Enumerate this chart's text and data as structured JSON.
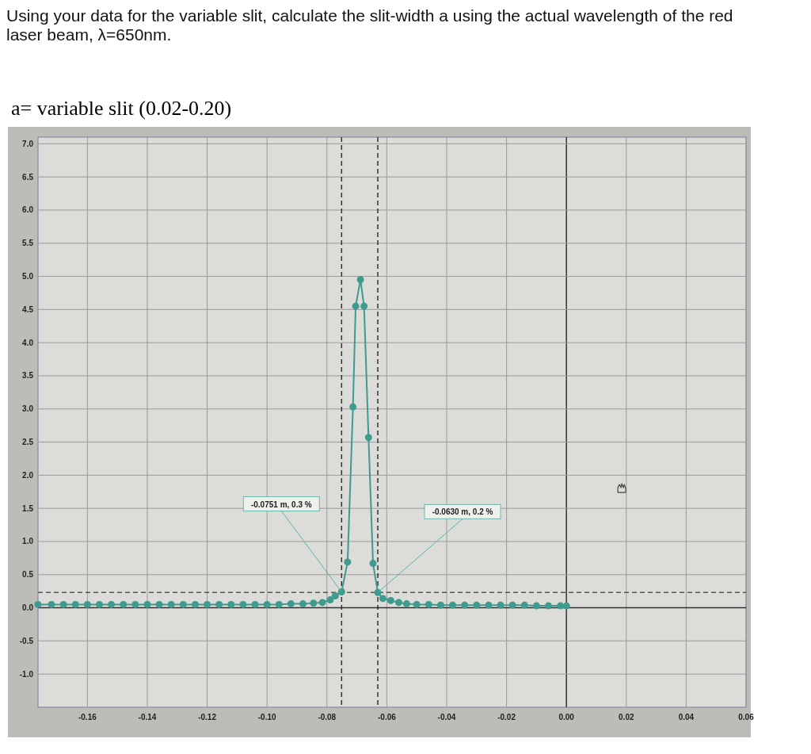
{
  "chart_data": {
    "type": "line",
    "title": "Using your data for the variable slit, calculate the slit-width a using the actual wavelength of the red laser beam, λ=650nm.",
    "subtitle": "a= variable slit (0.02-0.20)",
    "series": [
      {
        "color": "#3f9a8f",
        "x": [
          -0.1765,
          -0.172,
          -0.168,
          -0.164,
          -0.16,
          -0.156,
          -0.152,
          -0.148,
          -0.144,
          -0.14,
          -0.136,
          -0.132,
          -0.128,
          -0.124,
          -0.12,
          -0.116,
          -0.112,
          -0.108,
          -0.104,
          -0.1,
          -0.096,
          -0.092,
          -0.088,
          -0.0845,
          -0.0815,
          -0.0789,
          -0.0772,
          -0.0751,
          -0.0731,
          -0.0713,
          -0.0704,
          -0.0688,
          -0.0676,
          -0.0661,
          -0.0646,
          -0.063,
          -0.0613,
          -0.0587,
          -0.056,
          -0.0534,
          -0.05,
          -0.046,
          -0.042,
          -0.038,
          -0.034,
          -0.03,
          -0.026,
          -0.022,
          -0.018,
          -0.014,
          -0.01,
          -0.006,
          -0.002,
          0.0
        ],
        "values": [
          0.05,
          0.05,
          0.05,
          0.05,
          0.05,
          0.05,
          0.05,
          0.05,
          0.05,
          0.05,
          0.05,
          0.05,
          0.05,
          0.05,
          0.05,
          0.05,
          0.05,
          0.05,
          0.05,
          0.05,
          0.05,
          0.06,
          0.06,
          0.07,
          0.08,
          0.12,
          0.18,
          0.24,
          0.69,
          3.03,
          4.55,
          4.95,
          4.55,
          2.57,
          0.67,
          0.23,
          0.14,
          0.11,
          0.08,
          0.06,
          0.05,
          0.05,
          0.04,
          0.04,
          0.04,
          0.04,
          0.04,
          0.04,
          0.04,
          0.04,
          0.03,
          0.03,
          0.03,
          0.03
        ]
      }
    ],
    "marker": "circle",
    "grid": true,
    "xlim": [
      -0.1765,
      0.06
    ],
    "ylim": [
      -1.5,
      7.1
    ],
    "xticks": [
      {
        "value": -0.16,
        "label": "-0.16"
      },
      {
        "value": -0.14,
        "label": "-0.14"
      },
      {
        "value": -0.12,
        "label": "-0.12"
      },
      {
        "value": -0.1,
        "label": "-0.10"
      },
      {
        "value": -0.08,
        "label": "-0.08"
      },
      {
        "value": -0.06,
        "label": "-0.06"
      },
      {
        "value": -0.04,
        "label": "-0.04"
      },
      {
        "value": -0.02,
        "label": "-0.02"
      },
      {
        "value": 0,
        "label": "0.00"
      },
      {
        "value": 0.02,
        "label": "0.02"
      },
      {
        "value": 0.04,
        "label": "0.04"
      },
      {
        "value": 0.06,
        "label": "0.06"
      }
    ],
    "yticks": [
      {
        "value": -1,
        "label": "-1.0"
      },
      {
        "value": -0.5,
        "label": "-0.5"
      },
      {
        "value": 0,
        "label": "0.0"
      },
      {
        "value": 0.5,
        "label": "0.5"
      },
      {
        "value": 1,
        "label": "1.0"
      },
      {
        "value": 1.5,
        "label": "1.5"
      },
      {
        "value": 2,
        "label": "2.0"
      },
      {
        "value": 2.5,
        "label": "2.5"
      },
      {
        "value": 3,
        "label": "3.0"
      },
      {
        "value": 3.5,
        "label": "3.5"
      },
      {
        "value": 4,
        "label": "4.0"
      },
      {
        "value": 4.5,
        "label": "4.5"
      },
      {
        "value": 5,
        "label": "5.0"
      },
      {
        "value": 5.5,
        "label": "5.5"
      },
      {
        "value": 6,
        "label": "6.0"
      },
      {
        "value": 6.5,
        "label": "6.5"
      },
      {
        "value": 7,
        "label": "7.0"
      }
    ],
    "ref_lines": [
      {
        "axis": "x",
        "value": -0.0751,
        "line_style": "dashed",
        "color": "#333333"
      },
      {
        "axis": "x",
        "value": -0.063,
        "line_style": "dashed",
        "color": "#333333"
      },
      {
        "axis": "y",
        "value": 0.23,
        "line_style": "dashed",
        "color": "#555555"
      }
    ],
    "annotations": [
      {
        "text": "-0.0751 m, 0.3 %",
        "x": -0.0751,
        "y": 0.24
      },
      {
        "text": "-0.0630 m, 0.2 %",
        "x": -0.063,
        "y": 0.23
      }
    ]
  }
}
